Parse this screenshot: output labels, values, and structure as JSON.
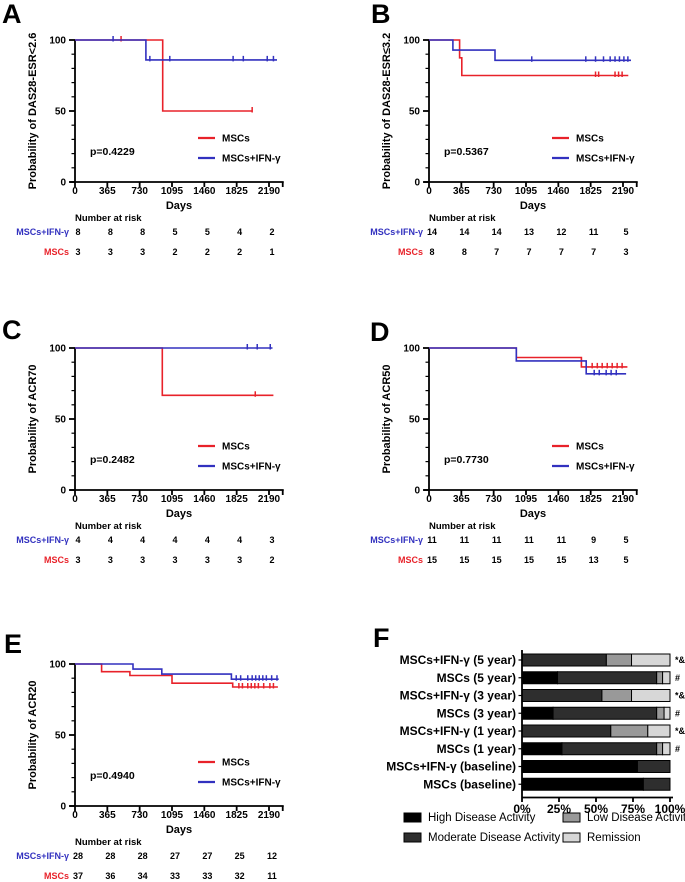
{
  "figure_background": "#ffffff",
  "colors": {
    "mscs_line": "#e8222a",
    "ifn_line": "#3231bf",
    "axis": "#000000",
    "high_activity": "#000000",
    "moderate_activity": "#2e2e2e",
    "low_activity": "#999999",
    "remission": "#d7d7d7"
  },
  "chart_data": [
    {
      "type": "line",
      "panel": "A",
      "km": true,
      "ylabel": "Probability of DAS28-ESR<2.6",
      "xlabel": "Days",
      "pvalue": "p=0.4229",
      "xticks": [
        0,
        365,
        730,
        1095,
        1460,
        1825,
        2190
      ],
      "yticks": [
        0,
        50,
        100
      ],
      "xlim": [
        0,
        2345
      ],
      "ylim": [
        0,
        100
      ],
      "legend": [
        {
          "label": "MSCs",
          "color": "#e8222a"
        },
        {
          "label": "MSCs+IFN-γ",
          "color": "#3231bf"
        }
      ],
      "series": [
        {
          "name": "MSCs",
          "color": "#e8222a",
          "points": [
            [
              0,
              100
            ],
            [
              990,
              100
            ],
            [
              990,
              50
            ],
            [
              2000,
              50
            ]
          ],
          "censors": [
            [
              520,
              100
            ],
            [
              2000,
              50
            ]
          ]
        },
        {
          "name": "MSCs+IFN-γ",
          "color": "#3231bf",
          "points": [
            [
              0,
              100
            ],
            [
              800,
              100
            ],
            [
              800,
              86
            ],
            [
              2280,
              86
            ]
          ],
          "censors": [
            [
              430,
              100
            ],
            [
              845,
              86
            ],
            [
              1070,
              86
            ],
            [
              1785,
              86
            ],
            [
              1900,
              86
            ],
            [
              2170,
              86
            ],
            [
              2240,
              86
            ]
          ]
        }
      ],
      "number_at_risk": {
        "header": "Number at risk",
        "rows": [
          {
            "label": "MSCs+IFN-γ",
            "color": "#3231bf",
            "values": [
              8,
              8,
              8,
              5,
              5,
              4,
              2
            ]
          },
          {
            "label": "MSCs",
            "color": "#e8222a",
            "values": [
              3,
              3,
              3,
              2,
              2,
              2,
              1
            ]
          }
        ]
      }
    },
    {
      "type": "line",
      "panel": "B",
      "km": true,
      "ylabel": "Probability of DAS28-ESR≤3.2",
      "xlabel": "Days",
      "pvalue": "p=0.5367",
      "xticks": [
        0,
        365,
        730,
        1095,
        1460,
        1825,
        2190
      ],
      "yticks": [
        0,
        50,
        100
      ],
      "xlim": [
        0,
        2345
      ],
      "ylim": [
        0,
        100
      ],
      "legend": [
        {
          "label": "MSCs",
          "color": "#e8222a"
        },
        {
          "label": "MSCs+IFN-γ",
          "color": "#3231bf"
        }
      ],
      "series": [
        {
          "name": "MSCs",
          "color": "#e8222a",
          "points": [
            [
              0,
              100
            ],
            [
              345,
              100
            ],
            [
              345,
              87.5
            ],
            [
              370,
              87.5
            ],
            [
              370,
              75
            ],
            [
              2250,
              75
            ]
          ],
          "censors": [
            [
              1880,
              75
            ],
            [
              1915,
              75
            ],
            [
              2100,
              75
            ],
            [
              2140,
              75
            ],
            [
              2180,
              75
            ]
          ]
        },
        {
          "name": "MSCs+IFN-γ",
          "color": "#3231bf",
          "points": [
            [
              0,
              100
            ],
            [
              270,
              100
            ],
            [
              270,
              92.9
            ],
            [
              745,
              92.9
            ],
            [
              745,
              85.7
            ],
            [
              2280,
              85.7
            ]
          ],
          "censors": [
            [
              1160,
              85.7
            ],
            [
              1770,
              85.7
            ],
            [
              1880,
              85.7
            ],
            [
              1970,
              85.7
            ],
            [
              2045,
              85.7
            ],
            [
              2100,
              85.7
            ],
            [
              2150,
              85.7
            ],
            [
              2200,
              85.7
            ],
            [
              2245,
              85.7
            ]
          ]
        }
      ],
      "number_at_risk": {
        "header": "Number at risk",
        "rows": [
          {
            "label": "MSCs+IFN-γ",
            "color": "#3231bf",
            "values": [
              14,
              14,
              14,
              13,
              12,
              11,
              5
            ]
          },
          {
            "label": "MSCs",
            "color": "#e8222a",
            "values": [
              8,
              8,
              7,
              7,
              7,
              7,
              3
            ]
          }
        ]
      }
    },
    {
      "type": "line",
      "panel": "C",
      "km": true,
      "ylabel": "Probability of ACR70",
      "xlabel": "Days",
      "pvalue": "p=0.2482",
      "xticks": [
        0,
        365,
        730,
        1095,
        1460,
        1825,
        2190
      ],
      "yticks": [
        0,
        50,
        100
      ],
      "xlim": [
        0,
        2345
      ],
      "ylim": [
        0,
        100
      ],
      "legend": [
        {
          "label": "MSCs",
          "color": "#e8222a"
        },
        {
          "label": "MSCs+IFN-γ",
          "color": "#3231bf"
        }
      ],
      "series": [
        {
          "name": "MSCs",
          "color": "#e8222a",
          "points": [
            [
              0,
              100
            ],
            [
              985,
              100
            ],
            [
              985,
              66.7
            ],
            [
              2240,
              66.7
            ]
          ],
          "censors": [
            [
              2035,
              66.7
            ]
          ]
        },
        {
          "name": "MSCs+IFN-γ",
          "color": "#3231bf",
          "points": [
            [
              0,
              100
            ],
            [
              2230,
              100
            ]
          ],
          "censors": [
            [
              1945,
              100
            ],
            [
              2057,
              100
            ],
            [
              2204,
              100
            ]
          ]
        }
      ],
      "number_at_risk": {
        "header": "Number at risk",
        "rows": [
          {
            "label": "MSCs+IFN-γ",
            "color": "#3231bf",
            "values": [
              4,
              4,
              4,
              4,
              4,
              4,
              3
            ]
          },
          {
            "label": "MSCs",
            "color": "#e8222a",
            "values": [
              3,
              3,
              3,
              3,
              3,
              3,
              2
            ]
          }
        ]
      }
    },
    {
      "type": "line",
      "panel": "D",
      "km": true,
      "ylabel": "Probability of ACR50",
      "xlabel": "Days",
      "pvalue": "p=0.7730",
      "xticks": [
        0,
        365,
        730,
        1095,
        1460,
        1825,
        2190
      ],
      "yticks": [
        0,
        50,
        100
      ],
      "xlim": [
        0,
        2345
      ],
      "ylim": [
        0,
        100
      ],
      "legend": [
        {
          "label": "MSCs",
          "color": "#e8222a"
        },
        {
          "label": "MSCs+IFN-γ",
          "color": "#3231bf"
        }
      ],
      "series": [
        {
          "name": "MSCs",
          "color": "#e8222a",
          "points": [
            [
              0,
              100
            ],
            [
              985,
              100
            ],
            [
              985,
              93.3
            ],
            [
              1720,
              93.3
            ],
            [
              1720,
              86.7
            ],
            [
              2240,
              86.7
            ]
          ],
          "censors": [
            [
              1842,
              86.7
            ],
            [
              1900,
              86.7
            ],
            [
              1955,
              86.7
            ],
            [
              2012,
              86.7
            ],
            [
              2068,
              86.7
            ],
            [
              2124,
              86.7
            ],
            [
              2180,
              86.7
            ]
          ]
        },
        {
          "name": "MSCs+IFN-γ",
          "color": "#3231bf",
          "points": [
            [
              0,
              100
            ],
            [
              985,
              100
            ],
            [
              985,
              90.9
            ],
            [
              1775,
              90.9
            ],
            [
              1775,
              81.8
            ],
            [
              2225,
              81.8
            ]
          ],
          "censors": [
            [
              1865,
              81.8
            ],
            [
              1922,
              81.8
            ],
            [
              2000,
              81.8
            ],
            [
              2056,
              81.8
            ],
            [
              2114,
              81.8
            ]
          ]
        }
      ],
      "number_at_risk": {
        "header": "Number at risk",
        "rows": [
          {
            "label": "MSCs+IFN-γ",
            "color": "#3231bf",
            "values": [
              11,
              11,
              11,
              11,
              11,
              9,
              5
            ]
          },
          {
            "label": "MSCs",
            "color": "#e8222a",
            "values": [
              15,
              15,
              15,
              15,
              15,
              13,
              5
            ]
          }
        ]
      }
    },
    {
      "type": "line",
      "panel": "E",
      "km": true,
      "ylabel": "Probability of ACR20",
      "xlabel": "Days",
      "pvalue": "p=0.4940",
      "xticks": [
        0,
        365,
        730,
        1095,
        1460,
        1825,
        2190
      ],
      "yticks": [
        0,
        50,
        100
      ],
      "xlim": [
        0,
        2345
      ],
      "ylim": [
        0,
        100
      ],
      "legend": [
        {
          "label": "MSCs",
          "color": "#e8222a"
        },
        {
          "label": "MSCs+IFN-γ",
          "color": "#3231bf"
        }
      ],
      "series": [
        {
          "name": "MSCs",
          "color": "#e8222a",
          "points": [
            [
              0,
              100
            ],
            [
              300,
              100
            ],
            [
              300,
              94.6
            ],
            [
              620,
              94.6
            ],
            [
              620,
              91.9
            ],
            [
              1095,
              91.9
            ],
            [
              1095,
              86.5
            ],
            [
              1780,
              86.5
            ],
            [
              1780,
              83.8
            ],
            [
              2290,
              83.8
            ]
          ],
          "censors": [
            [
              1850,
              83.8
            ],
            [
              1890,
              83.8
            ],
            [
              1950,
              83.8
            ],
            [
              1990,
              83.8
            ],
            [
              2030,
              83.8
            ],
            [
              2070,
              83.8
            ],
            [
              2130,
              83.8
            ],
            [
              2200,
              83.8
            ],
            [
              2240,
              83.8
            ]
          ]
        },
        {
          "name": "MSCs+IFN-γ",
          "color": "#3231bf",
          "points": [
            [
              0,
              100
            ],
            [
              655,
              100
            ],
            [
              655,
              96.4
            ],
            [
              980,
              96.4
            ],
            [
              980,
              92.9
            ],
            [
              1765,
              92.9
            ],
            [
              1765,
              89.3
            ],
            [
              2300,
              89.3
            ]
          ],
          "censors": [
            [
              1820,
              89.3
            ],
            [
              1870,
              89.3
            ],
            [
              1950,
              89.3
            ],
            [
              2000,
              89.3
            ],
            [
              2040,
              89.3
            ],
            [
              2080,
              89.3
            ],
            [
              2120,
              89.3
            ],
            [
              2160,
              89.3
            ],
            [
              2220,
              89.3
            ],
            [
              2280,
              89.3
            ]
          ]
        }
      ],
      "number_at_risk": {
        "header": "Number at risk",
        "rows": [
          {
            "label": "MSCs+IFN-γ",
            "color": "#3231bf",
            "values": [
              28,
              28,
              28,
              27,
              27,
              25,
              12
            ]
          },
          {
            "label": "MSCs",
            "color": "#e8222a",
            "values": [
              37,
              36,
              34,
              33,
              33,
              32,
              11
            ]
          }
        ]
      }
    },
    {
      "type": "bar",
      "panel": "F",
      "stacked": true,
      "orientation": "horizontal",
      "categories": [
        "MSCs+IFN-γ (5 year)",
        "MSCs (5 year)",
        "MSCs+IFN-γ (3 year)",
        "MSCs (3 year)",
        "MSCs+IFN-γ (1 year)",
        "MSCs (1 year)",
        "MSCs+IFN-γ (baseline)",
        "MSCs (baseline)"
      ],
      "annotations": [
        "*&",
        "#",
        "*&",
        "#",
        "*&",
        "#",
        "",
        ""
      ],
      "series": [
        {
          "name": "High Disease Activity",
          "color": "#000000",
          "values": [
            0,
            24,
            0,
            21,
            0,
            27,
            78,
            82
          ]
        },
        {
          "name": "Moderate Disease Activity",
          "color": "#2e2e2e",
          "values": [
            57,
            67,
            54,
            70,
            60,
            64,
            22,
            18
          ]
        },
        {
          "name": "Low Disease Activity",
          "color": "#999999",
          "values": [
            17,
            4,
            20,
            5,
            25,
            4,
            0,
            0
          ]
        },
        {
          "name": "Remission",
          "color": "#d7d7d7",
          "values": [
            26,
            5,
            26,
            4,
            15,
            5,
            0,
            0
          ]
        }
      ],
      "xticks": [
        "0%",
        "25%",
        "50%",
        "75%",
        "100%"
      ],
      "xlim": [
        0,
        100
      ],
      "legend_columns": [
        [
          "High Disease Activity",
          "Moderate Disease Activity"
        ],
        [
          "Low Disease Activity",
          "Remission"
        ]
      ]
    }
  ]
}
